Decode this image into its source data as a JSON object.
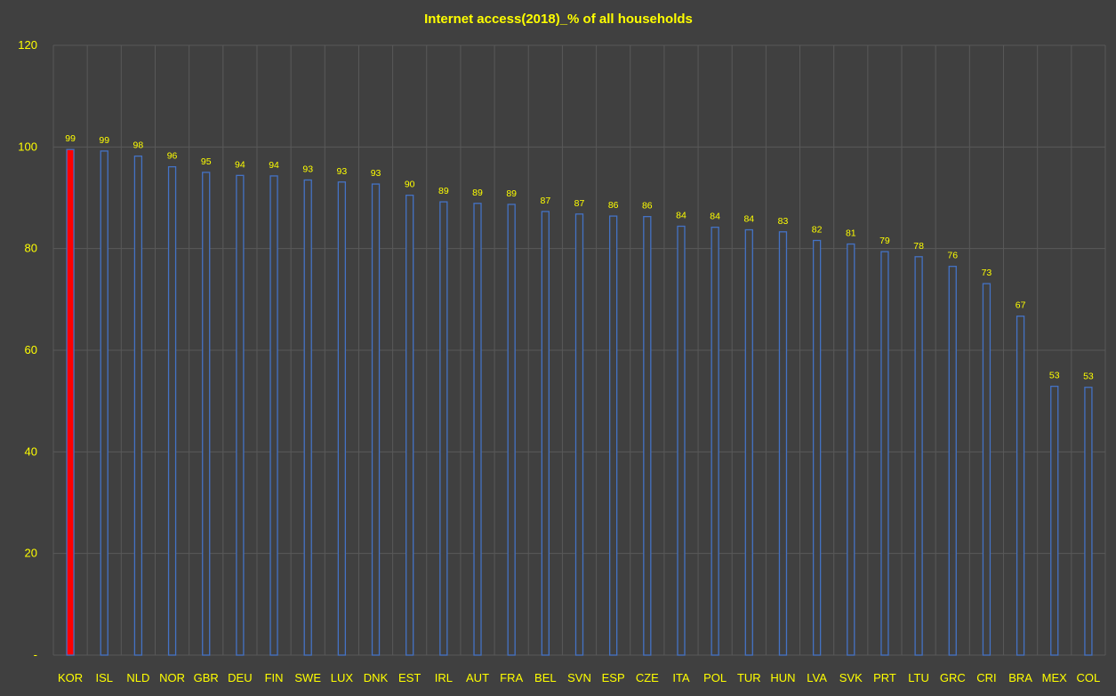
{
  "chart_data": {
    "type": "bar",
    "title": "Internet access(2018)_% of all households",
    "xlabel": "",
    "ylabel": "",
    "ylim": [
      0,
      120
    ],
    "yticks": [
      {
        "value": 0,
        "label": "-"
      },
      {
        "value": 20,
        "label": "20"
      },
      {
        "value": 40,
        "label": "40"
      },
      {
        "value": 60,
        "label": "60"
      },
      {
        "value": 80,
        "label": "80"
      },
      {
        "value": 100,
        "label": "100"
      },
      {
        "value": 120,
        "label": "120"
      }
    ],
    "grid": true,
    "categories": [
      "KOR",
      "ISL",
      "NLD",
      "NOR",
      "GBR",
      "DEU",
      "FIN",
      "SWE",
      "LUX",
      "DNK",
      "EST",
      "IRL",
      "AUT",
      "FRA",
      "BEL",
      "SVN",
      "ESP",
      "CZE",
      "ITA",
      "POL",
      "TUR",
      "HUN",
      "LVA",
      "SVK",
      "PRT",
      "LTU",
      "GRC",
      "CRI",
      "BRA",
      "MEX",
      "COL"
    ],
    "values": [
      99.5,
      99.2,
      98.2,
      96.1,
      95.0,
      94.4,
      94.3,
      93.5,
      93.1,
      92.7,
      90.5,
      89.2,
      88.9,
      88.7,
      87.3,
      86.8,
      86.4,
      86.3,
      84.4,
      84.2,
      83.7,
      83.3,
      81.6,
      80.9,
      79.4,
      78.4,
      76.5,
      73.1,
      66.7,
      52.9,
      52.7
    ],
    "data_labels": [
      "99",
      "99",
      "98",
      "96",
      "95",
      "94",
      "94",
      "93",
      "93",
      "93",
      "90",
      "89",
      "89",
      "89",
      "87",
      "87",
      "86",
      "86",
      "84",
      "84",
      "84",
      "83",
      "82",
      "81",
      "79",
      "78",
      "76",
      "73",
      "67",
      "53",
      "53"
    ],
    "colors": {
      "background": "#404040",
      "grid": "#595959",
      "text": "#ffff00",
      "bar_fill": "#404040",
      "bar_stroke": "#4472c4",
      "highlight_fill": "#ff0000",
      "highlight_stroke": "#4472c4"
    },
    "highlight_category": "KOR"
  }
}
